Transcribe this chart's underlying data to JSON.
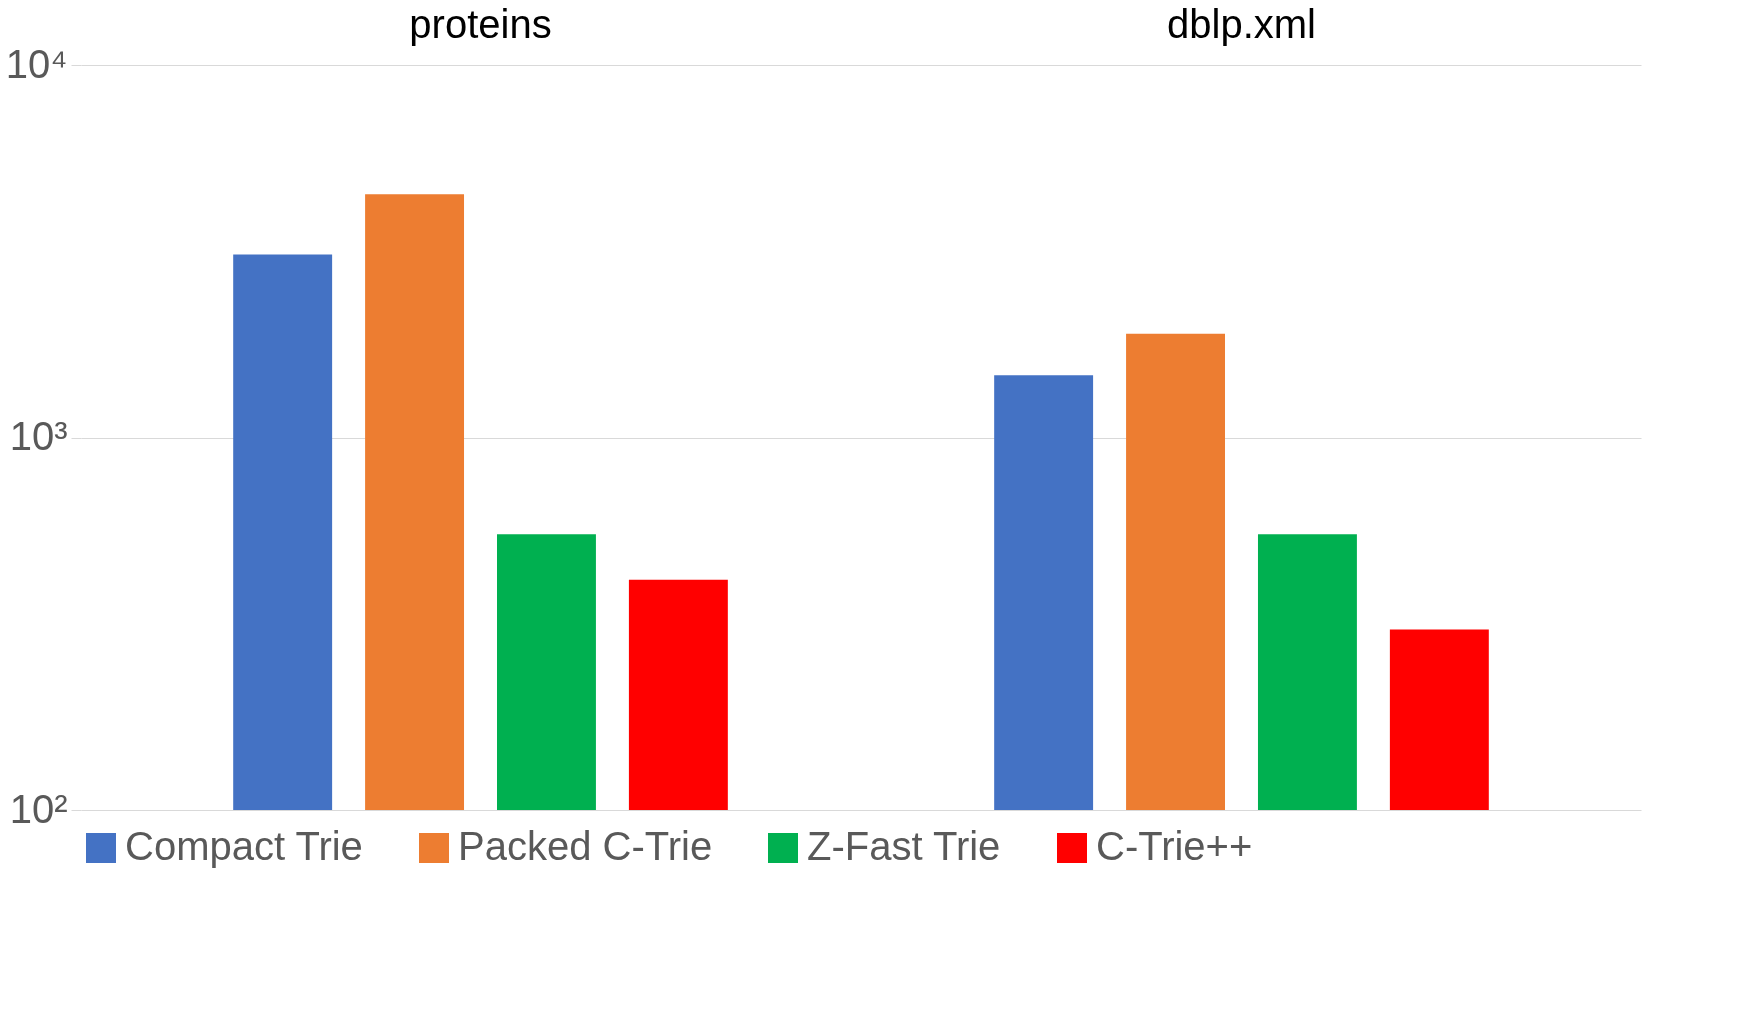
{
  "chart_data": {
    "type": "bar",
    "categories": [
      "proteins",
      "dblp.xml"
    ],
    "series": [
      {
        "name": "Compact Trie",
        "color": "#4472c4",
        "values": [
          3100,
          1470
        ]
      },
      {
        "name": "Packed C-Trie",
        "color": "#ed7d31",
        "values": [
          4500,
          1900
        ]
      },
      {
        "name": "Z-Fast Trie",
        "color": "#00b050",
        "values": [
          550,
          550
        ]
      },
      {
        "name": "C-Trie++",
        "color": "#ff0000",
        "values": [
          415,
          305
        ]
      }
    ],
    "log": true,
    "ylim": [
      100,
      10000
    ],
    "yticks": [
      {
        "value": 100,
        "label": "10²"
      },
      {
        "value": 1000,
        "label": "10³"
      },
      {
        "value": 10000,
        "label": "10⁴"
      }
    ],
    "grid": "y",
    "legend": "bottom"
  }
}
